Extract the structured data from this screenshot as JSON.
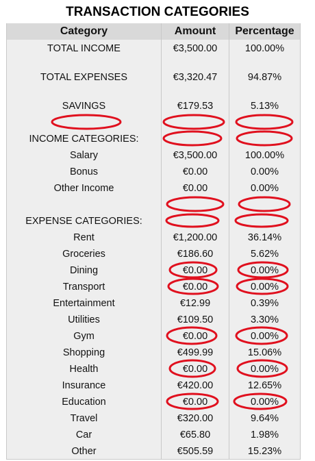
{
  "title": "TRANSACTION CATEGORIES",
  "header": {
    "category": "Category",
    "amount": "Amount",
    "percentage": "Percentage"
  },
  "rows": [
    {
      "category": "TOTAL INCOME",
      "amount": "€3,500.00",
      "percentage": "100.00%"
    },
    {
      "category": "TOTAL EXPENSES",
      "amount": "€3,320.47",
      "percentage": "94.87%"
    },
    {
      "category": "SAVINGS",
      "amount": "€179.53",
      "percentage": "5.13%"
    },
    {
      "category": "",
      "amount": "",
      "percentage": ""
    },
    {
      "category": "INCOME CATEGORIES:",
      "amount": "",
      "percentage": ""
    },
    {
      "category": "Salary",
      "amount": "€3,500.00",
      "percentage": "100.00%"
    },
    {
      "category": "Bonus",
      "amount": "€0.00",
      "percentage": "0.00%"
    },
    {
      "category": "Other Income",
      "amount": "€0.00",
      "percentage": "0.00%"
    },
    {
      "category": "",
      "amount": "",
      "percentage": ""
    },
    {
      "category": "EXPENSE CATEGORIES:",
      "amount": "",
      "percentage": ""
    },
    {
      "category": "Rent",
      "amount": "€1,200.00",
      "percentage": "36.14%"
    },
    {
      "category": "Groceries",
      "amount": "€186.60",
      "percentage": "5.62%"
    },
    {
      "category": "Dining",
      "amount": "€0.00",
      "percentage": "0.00%"
    },
    {
      "category": "Transport",
      "amount": "€0.00",
      "percentage": "0.00%"
    },
    {
      "category": "Entertainment",
      "amount": "€12.99",
      "percentage": "0.39%"
    },
    {
      "category": "Utilities",
      "amount": "€109.50",
      "percentage": "3.30%"
    },
    {
      "category": "Gym",
      "amount": "€0.00",
      "percentage": "0.00%"
    },
    {
      "category": "Shopping",
      "amount": "€499.99",
      "percentage": "15.06%"
    },
    {
      "category": "Health",
      "amount": "€0.00",
      "percentage": "0.00%"
    },
    {
      "category": "Insurance",
      "amount": "€420.00",
      "percentage": "12.65%"
    },
    {
      "category": "Education",
      "amount": "€0.00",
      "percentage": "0.00%"
    },
    {
      "category": "Travel",
      "amount": "€320.00",
      "percentage": "9.64%"
    },
    {
      "category": "Car",
      "amount": "€65.80",
      "percentage": "1.98%"
    },
    {
      "category": "Other",
      "amount": "€505.59",
      "percentage": "15.23%"
    }
  ],
  "annotation_color": "#e0101e"
}
